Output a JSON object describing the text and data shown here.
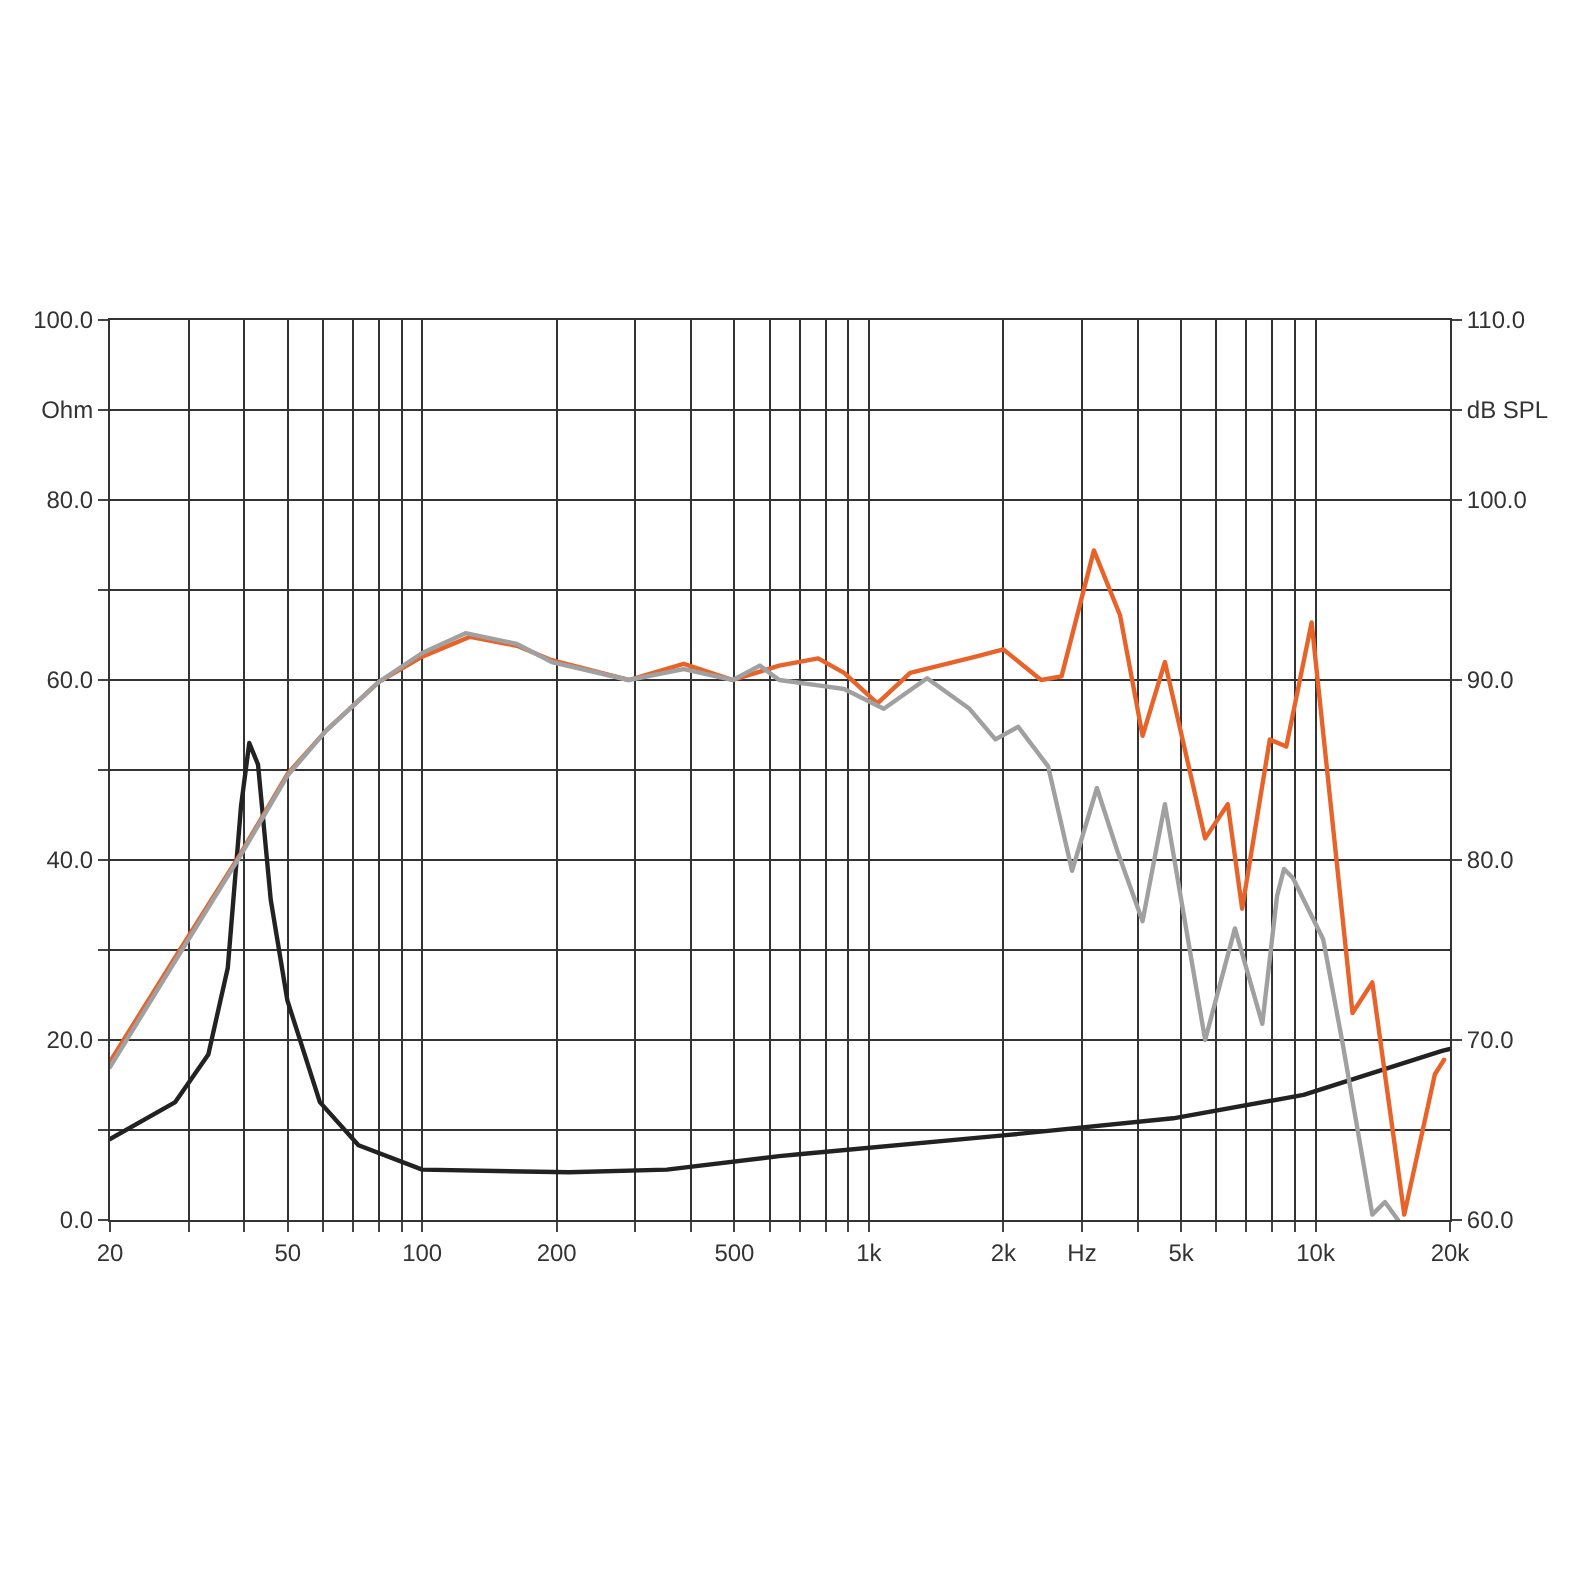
{
  "chart_data": {
    "type": "line",
    "log": "x",
    "grid": true,
    "marker": "none",
    "line_style": "solid",
    "xlim": [
      20,
      20000
    ],
    "xticks": [
      20,
      {
        "value": 30,
        "label": null
      },
      {
        "value": 40,
        "label": null
      },
      50,
      {
        "value": 60,
        "label": null
      },
      {
        "value": 70,
        "label": null
      },
      {
        "value": 80,
        "label": null
      },
      {
        "value": 90,
        "label": null
      },
      100,
      200,
      {
        "value": 300,
        "label": null
      },
      {
        "value": 400,
        "label": null
      },
      500,
      {
        "value": 600,
        "label": null
      },
      {
        "value": 700,
        "label": null
      },
      {
        "value": 800,
        "label": null
      },
      {
        "value": 900,
        "label": null
      },
      {
        "value": 1000,
        "label": "1k"
      },
      {
        "value": 2000,
        "label": "2k"
      },
      {
        "value": 3000,
        "label": "Hz"
      },
      {
        "value": 4000,
        "label": null
      },
      {
        "value": 5000,
        "label": "5k"
      },
      {
        "value": 6000,
        "label": null
      },
      {
        "value": 7000,
        "label": null
      },
      {
        "value": 8000,
        "label": null
      },
      {
        "value": 9000,
        "label": null
      },
      {
        "value": 10000,
        "label": "10k"
      },
      {
        "value": 20000,
        "label": "20k"
      }
    ],
    "ylim": [
      0,
      100
    ],
    "yticks": [
      {
        "value": 0,
        "label": "0.0"
      },
      {
        "value": 10,
        "label": null
      },
      {
        "value": 20,
        "label": "20.0"
      },
      {
        "value": 30,
        "label": null
      },
      {
        "value": 40,
        "label": "40.0"
      },
      {
        "value": 50,
        "label": null
      },
      {
        "value": 60,
        "label": "60.0"
      },
      {
        "value": 70,
        "label": null
      },
      {
        "value": 80,
        "label": "80.0"
      },
      {
        "value": 90,
        "label": "Ohm"
      },
      {
        "value": 100,
        "label": "100.0"
      }
    ],
    "y2lim": [
      60,
      110
    ],
    "y2ticks": [
      {
        "value": 60,
        "label": "60.0"
      },
      {
        "value": 70,
        "label": "70.0"
      },
      {
        "value": 80,
        "label": "80.0"
      },
      {
        "value": 90,
        "label": "90.0"
      },
      {
        "value": 100,
        "label": "100.0"
      },
      {
        "value": 105,
        "label": "dB SPL"
      },
      {
        "value": 110,
        "label": "110.0"
      }
    ],
    "series": [
      {
        "color": "#222222",
        "x": [
          20,
          28,
          33.2,
          36.7,
          39.3,
          41,
          42.9,
          45.8,
          49.9,
          59,
          72,
          100,
          213,
          353,
          630,
          698,
          2000,
          4800,
          9400,
          19200,
          20000
        ],
        "values": [
          9.0,
          13.1,
          18.4,
          28,
          46,
          53,
          50.6,
          35.6,
          24.4,
          13.1,
          8.3,
          5.6,
          5.3,
          5.6,
          7.1,
          7.3,
          9.4,
          11.3,
          13.9,
          18.8,
          19
        ]
      },
      {
        "color": "#e8632a",
        "axis": "y2",
        "x": [
          20,
          28,
          39.3,
          50,
          61,
          80,
          100,
          128,
          163,
          195,
          290,
          385,
          496,
          630,
          770,
          880,
          1045,
          1237,
          1735,
          2000,
          2430,
          2700,
          3190,
          3650,
          4100,
          4600,
          5660,
          6360,
          6850,
          7900,
          8600,
          9800,
          12100,
          13400,
          15800,
          18500,
          19400
        ],
        "values": [
          68.8,
          74.6,
          80.4,
          84.8,
          87.2,
          89.9,
          91.3,
          92.4,
          91.9,
          91.1,
          90.0,
          90.9,
          90.0,
          90.8,
          91.2,
          90.4,
          88.7,
          90.4,
          91.3,
          91.7,
          90.0,
          90.2,
          97.2,
          93.6,
          86.9,
          91.0,
          81.2,
          83.1,
          77.3,
          86.7,
          86.3,
          93.2,
          71.5,
          73.2,
          60.3,
          68.1,
          68.9
        ]
      },
      {
        "color": "#a0a0a0",
        "axis": "y2",
        "x": [
          20,
          28,
          39.3,
          50,
          61,
          80,
          100,
          125,
          163,
          195,
          290,
          385,
          496,
          570,
          630,
          770,
          880,
          1080,
          1350,
          1680,
          1920,
          2160,
          2520,
          2850,
          3240,
          3600,
          4100,
          4600,
          5660,
          6600,
          7600,
          8200,
          8500,
          8900,
          10400,
          11500,
          13400,
          14300,
          15300
        ],
        "values": [
          68.5,
          74.4,
          80.3,
          84.7,
          87.2,
          89.9,
          91.5,
          92.6,
          92.0,
          91.0,
          90.0,
          90.6,
          90.0,
          90.8,
          90.0,
          89.7,
          89.5,
          88.4,
          90.1,
          88.4,
          86.7,
          87.4,
          85.2,
          79.4,
          84.0,
          80.5,
          76.6,
          83.1,
          70.0,
          76.2,
          70.9,
          78.0,
          79.5,
          79.0,
          75.6,
          69.8,
          60.3,
          61.0,
          60.0
        ]
      }
    ]
  }
}
